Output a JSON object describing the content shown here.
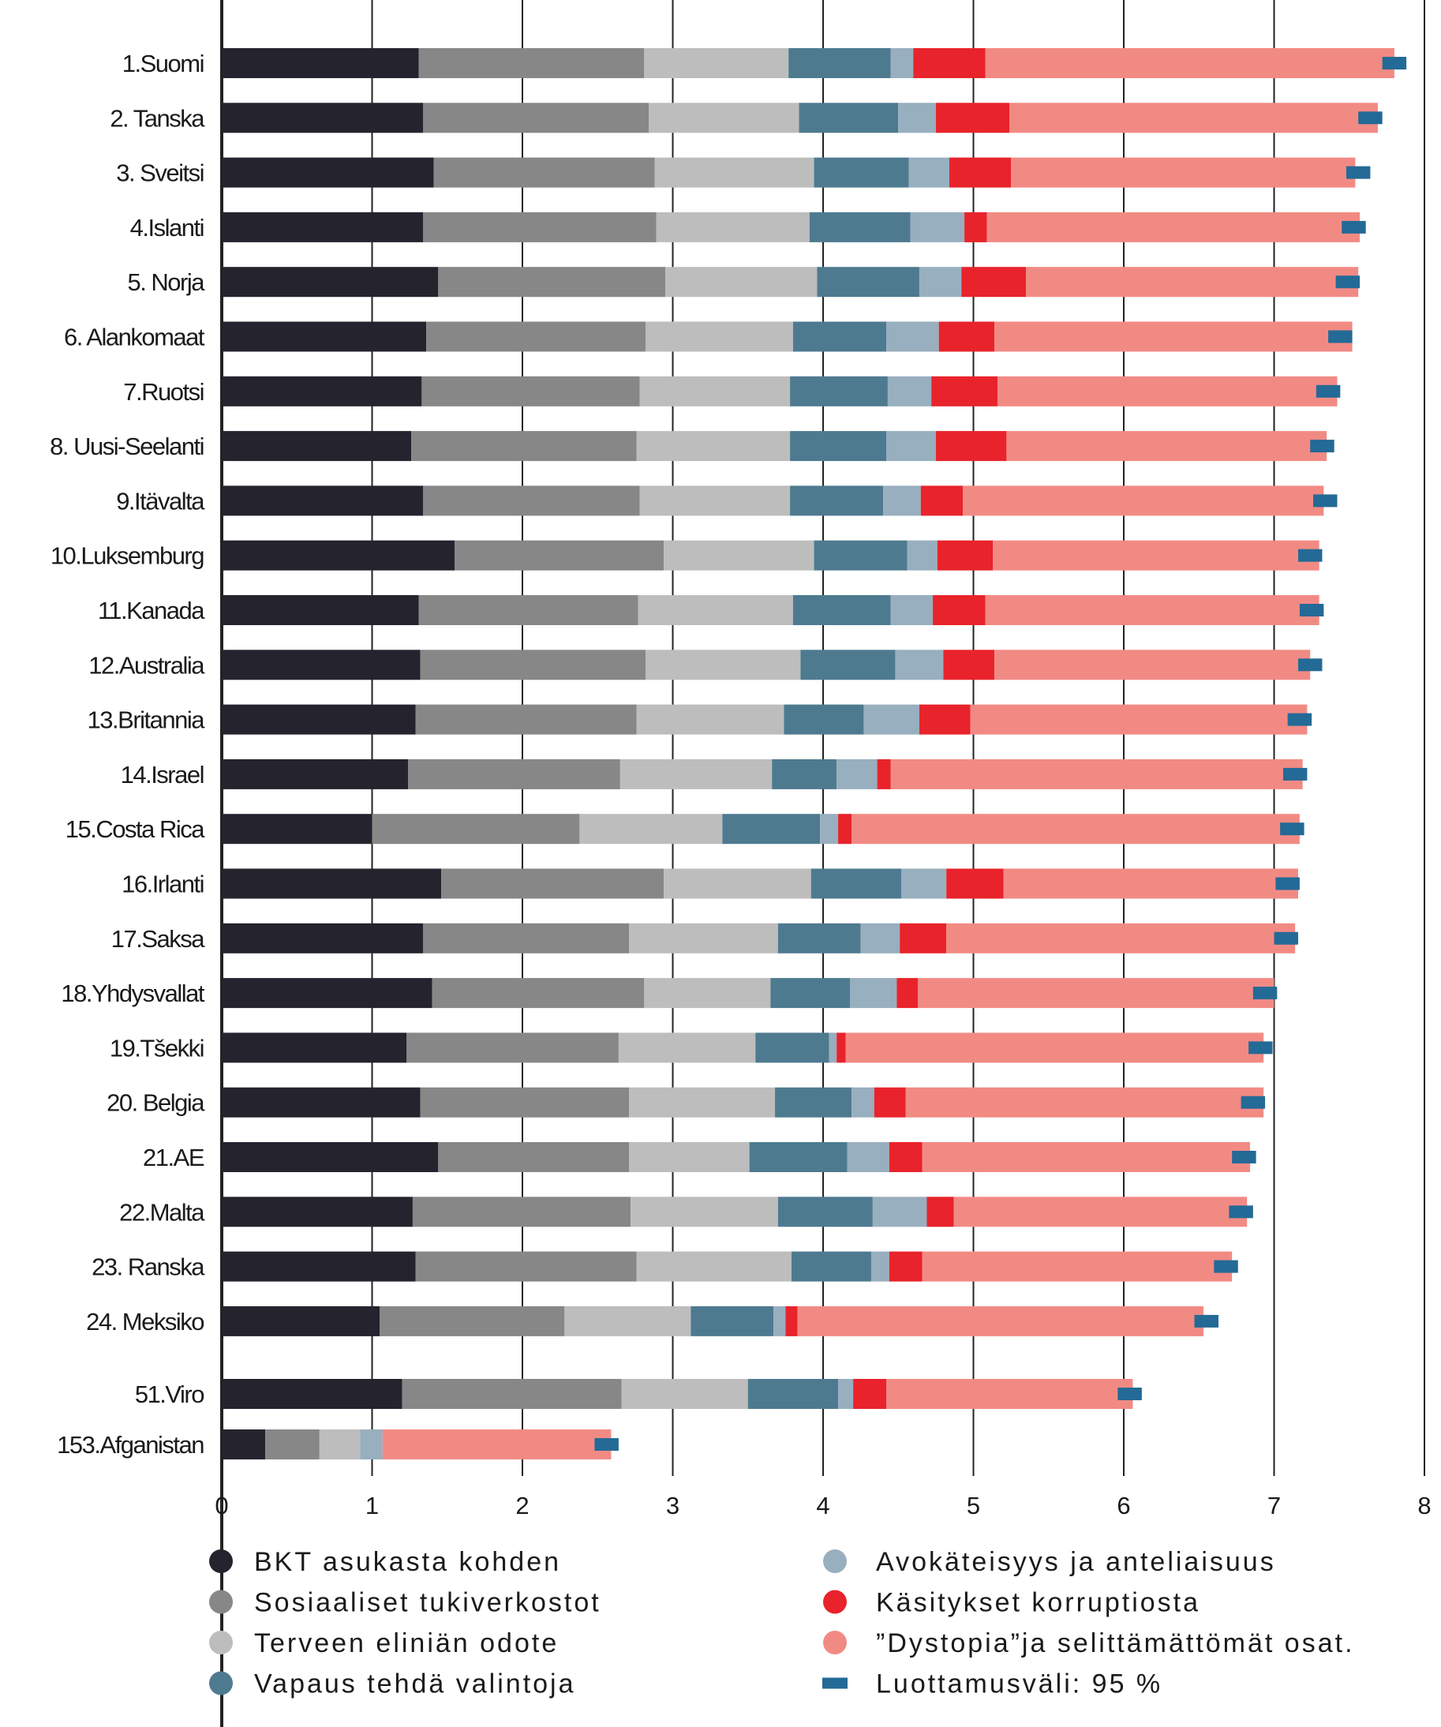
{
  "chart_data": {
    "type": "bar",
    "orientation": "horizontal",
    "stacked": true,
    "xlim": [
      0,
      8
    ],
    "x_ticks": [
      "0",
      "1",
      "2",
      "3",
      "4",
      "5",
      "6",
      "7",
      "8"
    ],
    "grid": "vertical",
    "legend_position": "bottom",
    "categories": [
      "1.Suomi",
      "2. Tanska",
      "3. Sveitsi",
      "4.Islanti",
      "5. Norja",
      "6. Alankomaat",
      "7.Ruotsi",
      "8. Uusi-Seelanti",
      "9.Itävalta",
      "10.Luksemburg",
      "11.Kanada",
      "12.Australia",
      "13.Britannia",
      "14.Israel",
      "15.Costa Rica",
      "16.Irlanti",
      "17.Saksa",
      "18.Yhdysvallat",
      "19.Tšekki",
      "20. Belgia",
      "21.AE",
      "22.Malta",
      "23. Ranska",
      "24. Meksiko",
      "51.Viro",
      "153.Afganistan"
    ],
    "group_break_after_index": 23,
    "series": [
      {
        "name": "BKT asukasta kohden",
        "color": "#25232e",
        "values": [
          1.31,
          1.34,
          1.41,
          1.34,
          1.44,
          1.36,
          1.33,
          1.26,
          1.34,
          1.55,
          1.31,
          1.32,
          1.29,
          1.24,
          1.0,
          1.46,
          1.34,
          1.4,
          1.23,
          1.32,
          1.44,
          1.27,
          1.29,
          1.05,
          1.2,
          0.29
        ]
      },
      {
        "name": "Sosiaaliset tukiverkostot",
        "color": "#878787",
        "values": [
          1.5,
          1.5,
          1.47,
          1.55,
          1.51,
          1.46,
          1.45,
          1.5,
          1.44,
          1.39,
          1.46,
          1.5,
          1.47,
          1.41,
          1.38,
          1.48,
          1.37,
          1.41,
          1.41,
          1.39,
          1.27,
          1.45,
          1.47,
          1.23,
          1.46,
          0.36
        ]
      },
      {
        "name": "Terveen eliniän odote",
        "color": "#bdbdbd",
        "values": [
          0.96,
          1.0,
          1.06,
          1.02,
          1.01,
          0.98,
          1.0,
          1.02,
          1.0,
          1.0,
          1.03,
          1.03,
          0.98,
          1.01,
          0.95,
          0.98,
          0.99,
          0.84,
          0.91,
          0.97,
          0.8,
          0.98,
          1.03,
          0.84,
          0.84,
          0.27
        ]
      },
      {
        "name": "Vapaus tehdä valintoja",
        "color": "#4e7a90",
        "values": [
          0.68,
          0.66,
          0.63,
          0.67,
          0.68,
          0.62,
          0.65,
          0.64,
          0.62,
          0.62,
          0.65,
          0.63,
          0.53,
          0.43,
          0.65,
          0.6,
          0.55,
          0.53,
          0.49,
          0.51,
          0.65,
          0.63,
          0.53,
          0.55,
          0.6,
          0.0
        ]
      },
      {
        "name": "Avokäteisyys ja anteliaisuus",
        "color": "#98afbf",
        "values": [
          0.15,
          0.25,
          0.27,
          0.36,
          0.28,
          0.35,
          0.29,
          0.33,
          0.25,
          0.2,
          0.28,
          0.32,
          0.37,
          0.27,
          0.12,
          0.3,
          0.26,
          0.31,
          0.05,
          0.15,
          0.28,
          0.36,
          0.12,
          0.08,
          0.1,
          0.15
        ]
      },
      {
        "name": "Käsitykset korruptiosta",
        "color": "#e8232b",
        "values": [
          0.48,
          0.49,
          0.41,
          0.15,
          0.43,
          0.37,
          0.44,
          0.47,
          0.28,
          0.37,
          0.35,
          0.34,
          0.34,
          0.09,
          0.09,
          0.38,
          0.31,
          0.14,
          0.06,
          0.21,
          0.22,
          0.18,
          0.22,
          0.08,
          0.22,
          0.0
        ]
      },
      {
        "name": "”Dystopia”ja selittämättömät osat.",
        "color": "#f28a84",
        "values": [
          2.72,
          2.45,
          2.29,
          2.48,
          2.21,
          2.38,
          2.26,
          2.13,
          2.4,
          2.17,
          2.22,
          2.1,
          2.24,
          2.74,
          2.98,
          1.96,
          2.32,
          2.37,
          2.78,
          2.38,
          2.18,
          1.95,
          2.06,
          2.7,
          1.64,
          1.52
        ]
      }
    ],
    "confidence_interval": {
      "name": "Luottamusväli:  95 %",
      "color": "#246a96",
      "centers": [
        7.8,
        7.64,
        7.56,
        7.53,
        7.49,
        7.44,
        7.36,
        7.32,
        7.34,
        7.24,
        7.25,
        7.24,
        7.17,
        7.14,
        7.12,
        7.09,
        7.08,
        6.94,
        6.91,
        6.86,
        6.8,
        6.78,
        6.68,
        6.55,
        6.04,
        2.56
      ],
      "halfwidth": 0.08
    }
  },
  "legend": {
    "col1": [
      {
        "label": "BKT asukasta kohden",
        "color": "#25232e"
      },
      {
        "label": "Sosiaaliset tukiverkostot",
        "color": "#878787"
      },
      {
        "label": "Terveen eliniän odote",
        "color": "#bdbdbd"
      },
      {
        "label": "Vapaus tehdä valintoja",
        "color": "#4e7a90"
      }
    ],
    "col2": [
      {
        "label": "Avokäteisyys ja anteliaisuus",
        "color": "#98afbf"
      },
      {
        "label": "Käsitykset korruptiosta",
        "color": "#e8232b"
      },
      {
        "label": "”Dystopia”ja selittämättömät  osat.",
        "color": "#f28a84"
      }
    ],
    "ci_label": "Luottamusväli:  95 %",
    "ci_color": "#246a96"
  }
}
